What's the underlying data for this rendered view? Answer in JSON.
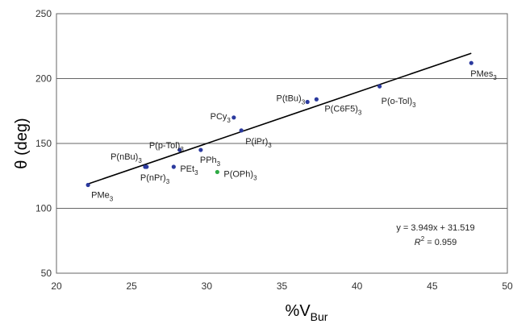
{
  "chart_data": {
    "type": "scatter",
    "xlabel": "%V",
    "xlabel_sub": "Bur",
    "ylabel": "θ (deg)",
    "xlim": [
      20,
      50
    ],
    "ylim": [
      50,
      250
    ],
    "xticks": [
      "20",
      "25",
      "30",
      "35",
      "40",
      "45",
      "50"
    ],
    "yticks": [
      "50",
      "100",
      "150",
      "200",
      "250"
    ],
    "grid": "horizontal",
    "colors": {
      "point": "#2b3a9e",
      "highlight": "#2eaa44",
      "fit": "#000000",
      "grid": "#666666"
    },
    "points": [
      {
        "x": 22.1,
        "y": 118,
        "label": "PMe",
        "sub": "3",
        "color": "#2b3a9e"
      },
      {
        "x": 25.9,
        "y": 132,
        "label": "P(nPr)",
        "sub": "3",
        "color": "#2b3a9e"
      },
      {
        "x": 26.0,
        "y": 132,
        "label": "P(nBu)",
        "sub": "3",
        "color": "#2b3a9e"
      },
      {
        "x": 27.8,
        "y": 132,
        "label": "PEt",
        "sub": "3",
        "color": "#2b3a9e"
      },
      {
        "x": 28.2,
        "y": 145,
        "label": "P(p-Tol)",
        "sub": "3",
        "color": "#2b3a9e"
      },
      {
        "x": 29.6,
        "y": 145,
        "label": "PPh",
        "sub": "3",
        "color": "#2b3a9e"
      },
      {
        "x": 30.7,
        "y": 128,
        "label": "P(OPh)",
        "sub": "3",
        "color": "#2eaa44"
      },
      {
        "x": 31.8,
        "y": 170,
        "label": "PCy",
        "sub": "3",
        "color": "#2b3a9e"
      },
      {
        "x": 32.3,
        "y": 160,
        "label": "P(iPr)",
        "sub": "3",
        "color": "#2b3a9e"
      },
      {
        "x": 36.7,
        "y": 182,
        "label": "P(tBu)",
        "sub": "3",
        "color": "#2b3a9e"
      },
      {
        "x": 37.3,
        "y": 184,
        "label": "P(C6F5)",
        "sub": "3",
        "color": "#2b3a9e"
      },
      {
        "x": 41.5,
        "y": 194,
        "label": "P(o-Tol)",
        "sub": "3",
        "color": "#2b3a9e"
      },
      {
        "x": 47.6,
        "y": 212,
        "label": "PMes",
        "sub": "3",
        "color": "#2b3a9e"
      }
    ],
    "fit": {
      "slope": 3.949,
      "intercept": 31.519,
      "x_range": [
        22.1,
        47.6
      ]
    },
    "equation_text": "y = 3.949x + 31.519",
    "r2_prefix": "R",
    "r2_sup": "2",
    "r2_value": " = 0.959"
  }
}
